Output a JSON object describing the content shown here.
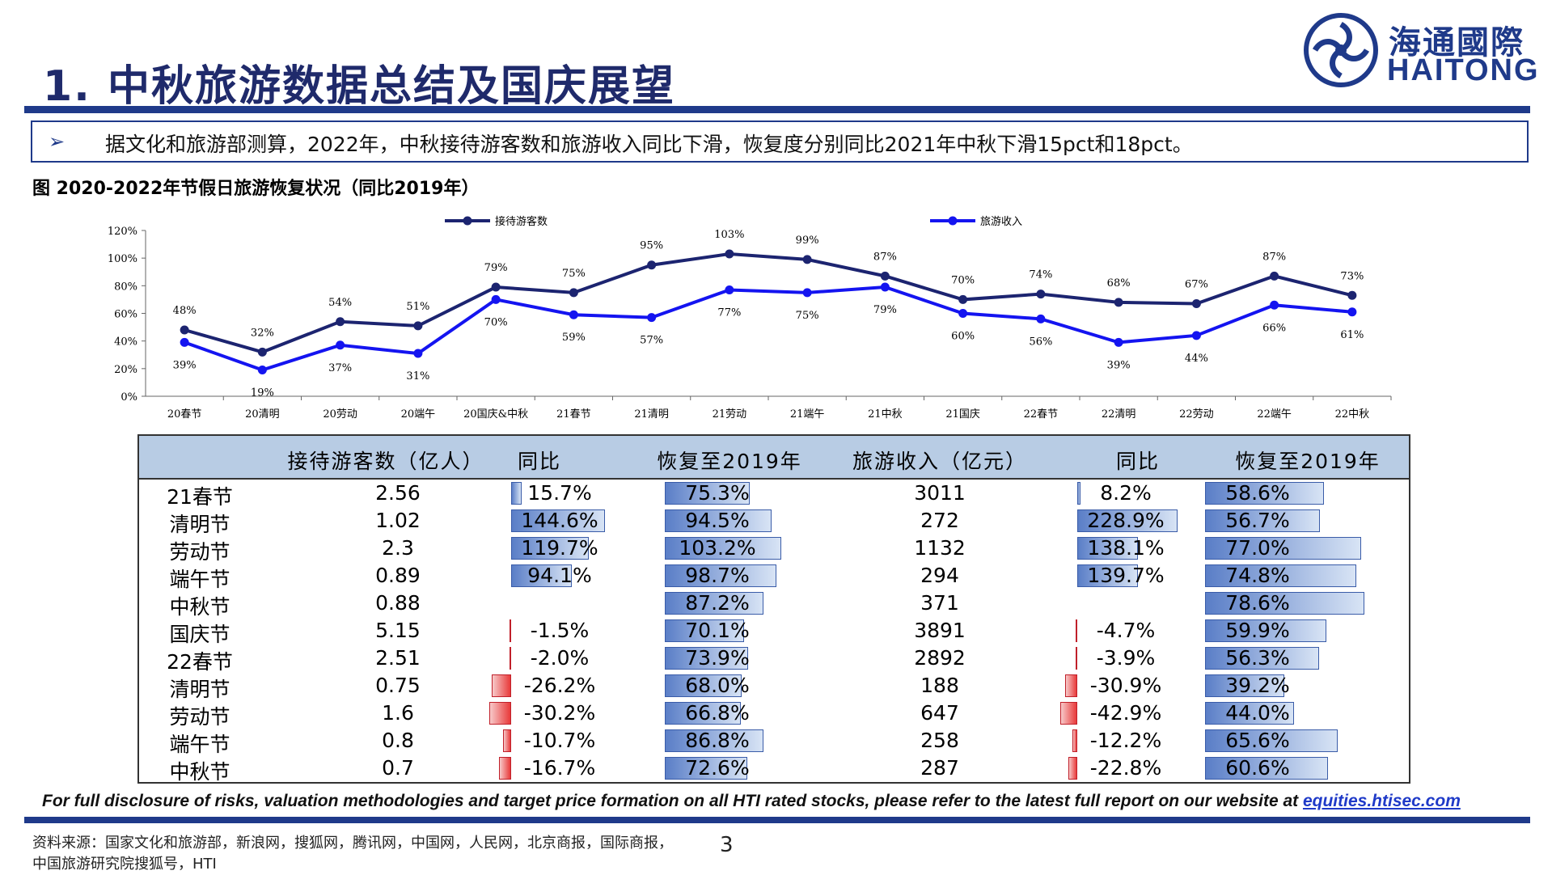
{
  "page": {
    "title": "1. 中秋旅游数据总结及国庆展望",
    "logo_cn": "海通國際",
    "logo_en": "HAITONG",
    "summary_bullet": "➢",
    "summary": "据文化和旅游部测算，2022年，中秋接待游客数和旅游收入同比下滑，恢复度分别同比2021年中秋下滑15pct和18pct。",
    "figure_title": "图 2020-2022年节假日旅游恢复状况（同比2019年）",
    "disclaimer_text": "For full disclosure of risks, valuation methodologies and target price formation on all HTI rated stocks, please refer to the latest full report on our website at ",
    "disclaimer_link": "equities.htisec.com",
    "source": "资料来源：国家文化和旅游部，新浪网，搜狐网，腾讯网，中国网，人民网，北京商报，国际商报，中国旅游研究院搜狐号，HTI",
    "page_number": "3"
  },
  "colors": {
    "brand": "#1F3A8A",
    "series_visitors": "#1C2470",
    "series_revenue": "#1414F0",
    "table_header": "#B8CCE4",
    "positive_bar": "#5A7EC7",
    "negative_bar": "#E83A3A"
  },
  "chart_data": {
    "type": "line",
    "categories": [
      "20春节",
      "20清明",
      "20劳动",
      "20端午",
      "20国庆&中秋",
      "21春节",
      "21清明",
      "21劳动",
      "21端午",
      "21中秋",
      "21国庆",
      "22春节",
      "22清明",
      "22劳动",
      "22端午",
      "22中秋"
    ],
    "y_ticks": [
      "0%",
      "20%",
      "40%",
      "60%",
      "80%",
      "100%",
      "120%"
    ],
    "ylim": [
      0,
      120
    ],
    "grid": false,
    "legend_position": "top",
    "series": [
      {
        "name": "接待游客数",
        "values": [
          48,
          32,
          54,
          51,
          79,
          75,
          95,
          103,
          99,
          87,
          70,
          74,
          68,
          67,
          87,
          73
        ],
        "labels": [
          "48%",
          "32%",
          "54%",
          "51%",
          "79%",
          "75%",
          "95%",
          "103%",
          "99%",
          "87%",
          "70%",
          "74%",
          "68%",
          "67%",
          "87%",
          "73%"
        ]
      },
      {
        "name": "旅游收入",
        "values": [
          39,
          19,
          37,
          31,
          70,
          59,
          57,
          77,
          75,
          79,
          60,
          56,
          39,
          44,
          66,
          61
        ],
        "labels": [
          "39%",
          "19%",
          "37%",
          "31%",
          "70%",
          "59%",
          "57%",
          "77%",
          "75%",
          "79%",
          "60%",
          "56%",
          "39%",
          "44%",
          "66%",
          "61%"
        ]
      }
    ]
  },
  "table": {
    "headers": [
      "接待游客数（亿人）",
      "同比",
      "恢复至2019年",
      "旅游收入（亿元）",
      "同比",
      "恢复至2019年"
    ],
    "rows": [
      {
        "label": "21春节",
        "visitors": "2.56",
        "v_yoy": 15.7,
        "v_yoy_text": "15.7%",
        "v_rec": 75.3,
        "v_rec_text": "75.3%",
        "revenue": "3011",
        "r_yoy": 8.2,
        "r_yoy_text": "8.2%",
        "r_rec": 58.6,
        "r_rec_text": "58.6%"
      },
      {
        "label": "清明节",
        "visitors": "1.02",
        "v_yoy": 144.6,
        "v_yoy_text": "144.6%",
        "v_rec": 94.5,
        "v_rec_text": "94.5%",
        "revenue": "272",
        "r_yoy": 228.9,
        "r_yoy_text": "228.9%",
        "r_rec": 56.7,
        "r_rec_text": "56.7%"
      },
      {
        "label": "劳动节",
        "visitors": "2.3",
        "v_yoy": 119.7,
        "v_yoy_text": "119.7%",
        "v_rec": 103.2,
        "v_rec_text": "103.2%",
        "revenue": "1132",
        "r_yoy": 138.1,
        "r_yoy_text": "138.1%",
        "r_rec": 77.0,
        "r_rec_text": "77.0%"
      },
      {
        "label": "端午节",
        "visitors": "0.89",
        "v_yoy": 94.1,
        "v_yoy_text": "94.1%",
        "v_rec": 98.7,
        "v_rec_text": "98.7%",
        "revenue": "294",
        "r_yoy": 139.7,
        "r_yoy_text": "139.7%",
        "r_rec": 74.8,
        "r_rec_text": "74.8%"
      },
      {
        "label": "中秋节",
        "visitors": "0.88",
        "v_yoy": null,
        "v_yoy_text": "",
        "v_rec": 87.2,
        "v_rec_text": "87.2%",
        "revenue": "371",
        "r_yoy": null,
        "r_yoy_text": "",
        "r_rec": 78.6,
        "r_rec_text": "78.6%"
      },
      {
        "label": "国庆节",
        "visitors": "5.15",
        "v_yoy": -1.5,
        "v_yoy_text": "-1.5%",
        "v_rec": 70.1,
        "v_rec_text": "70.1%",
        "revenue": "3891",
        "r_yoy": -4.7,
        "r_yoy_text": "-4.7%",
        "r_rec": 59.9,
        "r_rec_text": "59.9%"
      },
      {
        "label": "22春节",
        "visitors": "2.51",
        "v_yoy": -2.0,
        "v_yoy_text": "-2.0%",
        "v_rec": 73.9,
        "v_rec_text": "73.9%",
        "revenue": "2892",
        "r_yoy": -3.9,
        "r_yoy_text": "-3.9%",
        "r_rec": 56.3,
        "r_rec_text": "56.3%"
      },
      {
        "label": "清明节",
        "visitors": "0.75",
        "v_yoy": -26.2,
        "v_yoy_text": "-26.2%",
        "v_rec": 68.0,
        "v_rec_text": "68.0%",
        "revenue": "188",
        "r_yoy": -30.9,
        "r_yoy_text": "-30.9%",
        "r_rec": 39.2,
        "r_rec_text": "39.2%"
      },
      {
        "label": "劳动节",
        "visitors": "1.6",
        "v_yoy": -30.2,
        "v_yoy_text": "-30.2%",
        "v_rec": 66.8,
        "v_rec_text": "66.8%",
        "revenue": "647",
        "r_yoy": -42.9,
        "r_yoy_text": "-42.9%",
        "r_rec": 44.0,
        "r_rec_text": "44.0%"
      },
      {
        "label": "端午节",
        "visitors": "0.8",
        "v_yoy": -10.7,
        "v_yoy_text": "-10.7%",
        "v_rec": 86.8,
        "v_rec_text": "86.8%",
        "revenue": "258",
        "r_yoy": -12.2,
        "r_yoy_text": "-12.2%",
        "r_rec": 65.6,
        "r_rec_text": "65.6%"
      },
      {
        "label": "中秋节",
        "visitors": "0.7",
        "v_yoy": -16.7,
        "v_yoy_text": "-16.7%",
        "v_rec": 72.6,
        "v_rec_text": "72.6%",
        "revenue": "287",
        "r_yoy": -22.8,
        "r_yoy_text": "-22.8%",
        "r_rec": 60.6,
        "r_rec_text": "60.6%"
      }
    ]
  }
}
